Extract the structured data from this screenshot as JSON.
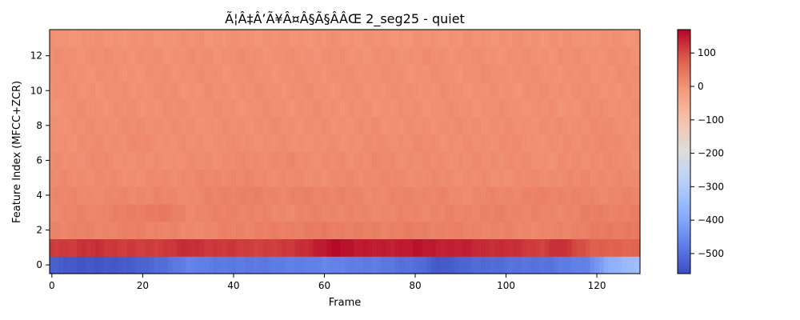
{
  "chart_data": {
    "type": "heatmap",
    "title": "Ã¦Â‡Â’Ã¥Â¤Â§Ã§ÂÂŒ 2_seg25 - quiet",
    "xlabel": "Frame",
    "ylabel": "Feature Index (MFCC+ZCR)",
    "xlim": [
      -0.5,
      129.5
    ],
    "ylim": [
      -0.5,
      13.5
    ],
    "x_ticks": [
      0,
      20,
      40,
      60,
      80,
      100,
      120
    ],
    "y_ticks": [
      0,
      2,
      4,
      6,
      8,
      10,
      12
    ],
    "n_frames": 130,
    "n_features": 14,
    "colormap": "coolwarm",
    "colorbar": {
      "vmin": -560,
      "vmax": 170,
      "ticks": [
        100,
        0,
        -100,
        -200,
        -300,
        -400,
        -500
      ],
      "tick_labels": [
        "100",
        "0",
        "−100",
        "−200",
        "−300",
        "−400",
        "−500"
      ]
    },
    "rows": [
      {
        "feature": 0,
        "anchors": [
          [
            0,
            -530
          ],
          [
            10,
            -545
          ],
          [
            20,
            -525
          ],
          [
            30,
            -470
          ],
          [
            40,
            -485
          ],
          [
            50,
            -480
          ],
          [
            60,
            -465
          ],
          [
            70,
            -480
          ],
          [
            80,
            -500
          ],
          [
            85,
            -540
          ],
          [
            90,
            -520
          ],
          [
            100,
            -500
          ],
          [
            110,
            -490
          ],
          [
            118,
            -465
          ],
          [
            122,
            -390
          ],
          [
            129,
            -330
          ]
        ]
      },
      {
        "feature": 1,
        "anchors": [
          [
            0,
            115
          ],
          [
            10,
            125
          ],
          [
            20,
            110
          ],
          [
            30,
            128
          ],
          [
            40,
            115
          ],
          [
            50,
            110
          ],
          [
            60,
            148
          ],
          [
            63,
            165
          ],
          [
            70,
            142
          ],
          [
            80,
            152
          ],
          [
            90,
            140
          ],
          [
            100,
            128
          ],
          [
            108,
            112
          ],
          [
            112,
            128
          ],
          [
            120,
            75
          ],
          [
            129,
            70
          ]
        ]
      },
      {
        "feature": 2,
        "anchors": [
          [
            0,
            25
          ],
          [
            10,
            22
          ],
          [
            20,
            28
          ],
          [
            30,
            15
          ],
          [
            40,
            25
          ],
          [
            50,
            30
          ],
          [
            60,
            35
          ],
          [
            70,
            28
          ],
          [
            80,
            32
          ],
          [
            90,
            25
          ],
          [
            100,
            22
          ],
          [
            110,
            18
          ],
          [
            120,
            35
          ],
          [
            129,
            40
          ]
        ]
      },
      {
        "feature": 3,
        "anchors": [
          [
            0,
            18
          ],
          [
            10,
            22
          ],
          [
            24,
            40
          ],
          [
            30,
            20
          ],
          [
            40,
            25
          ],
          [
            50,
            18
          ],
          [
            60,
            22
          ],
          [
            70,
            18
          ],
          [
            80,
            20
          ],
          [
            90,
            22
          ],
          [
            100,
            25
          ],
          [
            110,
            18
          ],
          [
            120,
            30
          ],
          [
            129,
            28
          ]
        ]
      },
      {
        "feature": 4,
        "anchors": [
          [
            0,
            18
          ],
          [
            10,
            15
          ],
          [
            20,
            20
          ],
          [
            30,
            15
          ],
          [
            40,
            28
          ],
          [
            50,
            22
          ],
          [
            60,
            25
          ],
          [
            70,
            18
          ],
          [
            80,
            22
          ],
          [
            90,
            15
          ],
          [
            100,
            20
          ],
          [
            110,
            25
          ],
          [
            120,
            18
          ],
          [
            129,
            20
          ]
        ]
      },
      {
        "feature": 5,
        "anchors": [
          [
            0,
            10
          ],
          [
            10,
            12
          ],
          [
            20,
            8
          ],
          [
            30,
            15
          ],
          [
            40,
            18
          ],
          [
            50,
            12
          ],
          [
            60,
            10
          ],
          [
            70,
            15
          ],
          [
            80,
            12
          ],
          [
            90,
            10
          ],
          [
            100,
            8
          ],
          [
            110,
            12
          ],
          [
            120,
            15
          ],
          [
            129,
            10
          ]
        ]
      },
      {
        "feature": 6,
        "anchors": [
          [
            0,
            8
          ],
          [
            10,
            10
          ],
          [
            20,
            5
          ],
          [
            30,
            8
          ],
          [
            40,
            10
          ],
          [
            50,
            15
          ],
          [
            60,
            8
          ],
          [
            70,
            12
          ],
          [
            80,
            10
          ],
          [
            90,
            8
          ],
          [
            100,
            10
          ],
          [
            110,
            5
          ],
          [
            120,
            12
          ],
          [
            129,
            8
          ]
        ]
      },
      {
        "feature": 7,
        "anchors": [
          [
            0,
            5
          ],
          [
            10,
            8
          ],
          [
            20,
            10
          ],
          [
            30,
            5
          ],
          [
            40,
            8
          ],
          [
            50,
            6
          ],
          [
            60,
            5
          ],
          [
            70,
            8
          ],
          [
            80,
            10
          ],
          [
            90,
            6
          ],
          [
            100,
            8
          ],
          [
            110,
            5
          ],
          [
            120,
            12
          ],
          [
            129,
            8
          ]
        ]
      },
      {
        "feature": 8,
        "anchors": [
          [
            0,
            5
          ],
          [
            10,
            6
          ],
          [
            20,
            8
          ],
          [
            30,
            5
          ],
          [
            40,
            6
          ],
          [
            50,
            8
          ],
          [
            60,
            5
          ],
          [
            70,
            6
          ],
          [
            80,
            5
          ],
          [
            90,
            8
          ],
          [
            100,
            6
          ],
          [
            110,
            5
          ],
          [
            120,
            10
          ],
          [
            129,
            6
          ]
        ]
      },
      {
        "feature": 9,
        "anchors": [
          [
            0,
            3
          ],
          [
            10,
            5
          ],
          [
            20,
            4
          ],
          [
            30,
            6
          ],
          [
            40,
            5
          ],
          [
            50,
            4
          ],
          [
            60,
            5
          ],
          [
            70,
            3
          ],
          [
            80,
            5
          ],
          [
            90,
            4
          ],
          [
            100,
            5
          ],
          [
            110,
            3
          ],
          [
            120,
            6
          ],
          [
            129,
            4
          ]
        ]
      },
      {
        "feature": 10,
        "anchors": [
          [
            0,
            4
          ],
          [
            10,
            3
          ],
          [
            20,
            5
          ],
          [
            30,
            4
          ],
          [
            40,
            3
          ],
          [
            50,
            5
          ],
          [
            60,
            4
          ],
          [
            70,
            3
          ],
          [
            80,
            5
          ],
          [
            90,
            4
          ],
          [
            100,
            3
          ],
          [
            110,
            5
          ],
          [
            120,
            4
          ],
          [
            129,
            3
          ]
        ]
      },
      {
        "feature": 11,
        "anchors": [
          [
            0,
            3
          ],
          [
            10,
            4
          ],
          [
            20,
            3
          ],
          [
            30,
            5
          ],
          [
            40,
            4
          ],
          [
            50,
            3
          ],
          [
            60,
            4
          ],
          [
            70,
            5
          ],
          [
            80,
            3
          ],
          [
            90,
            4
          ],
          [
            100,
            5
          ],
          [
            110,
            3
          ],
          [
            120,
            4
          ],
          [
            129,
            5
          ]
        ]
      },
      {
        "feature": 12,
        "anchors": [
          [
            0,
            4
          ],
          [
            10,
            5
          ],
          [
            20,
            3
          ],
          [
            30,
            4
          ],
          [
            40,
            5
          ],
          [
            50,
            3
          ],
          [
            60,
            4
          ],
          [
            70,
            3
          ],
          [
            80,
            5
          ],
          [
            90,
            4
          ],
          [
            100,
            3
          ],
          [
            110,
            4
          ],
          [
            120,
            5
          ],
          [
            129,
            4
          ]
        ]
      },
      {
        "feature": 13,
        "anchors": [
          [
            0,
            0
          ],
          [
            129,
            0
          ]
        ]
      }
    ]
  }
}
